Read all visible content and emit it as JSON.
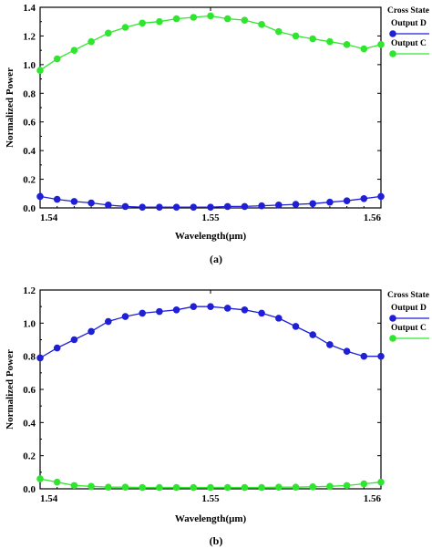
{
  "chart_data": [
    {
      "type": "line",
      "caption": "(a)",
      "xlabel": "Wavelength(μm)",
      "ylabel": "Normalized Power",
      "xlim": [
        1.54,
        1.56
      ],
      "ylim": [
        0,
        1.4
      ],
      "xticks": [
        "1.54",
        "1.55",
        "1.56"
      ],
      "yticks": [
        "0.0",
        "0.2",
        "0.4",
        "0.6",
        "0.8",
        "1.0",
        "1.2",
        "1.4"
      ],
      "grid": false,
      "legend": {
        "title": "Cross State",
        "placement": "right"
      },
      "x": [
        1.54,
        1.541,
        1.542,
        1.543,
        1.544,
        1.545,
        1.546,
        1.547,
        1.548,
        1.549,
        1.55,
        1.551,
        1.552,
        1.553,
        1.554,
        1.555,
        1.556,
        1.557,
        1.558,
        1.559,
        1.56
      ],
      "series": [
        {
          "name": "Output D",
          "color": "#1f1fd6",
          "values": [
            0.08,
            0.06,
            0.045,
            0.035,
            0.02,
            0.01,
            0.005,
            0.005,
            0.005,
            0.005,
            0.005,
            0.01,
            0.01,
            0.015,
            0.02,
            0.025,
            0.03,
            0.04,
            0.05,
            0.065,
            0.08
          ]
        },
        {
          "name": "Output C",
          "color": "#2ee62e",
          "values": [
            0.96,
            1.04,
            1.1,
            1.16,
            1.22,
            1.26,
            1.29,
            1.3,
            1.32,
            1.33,
            1.34,
            1.32,
            1.31,
            1.28,
            1.23,
            1.2,
            1.18,
            1.16,
            1.14,
            1.11,
            1.14
          ]
        }
      ]
    },
    {
      "type": "line",
      "caption": "(b)",
      "xlabel": "Wavelength(μm)",
      "ylabel": "Normalized Power",
      "xlim": [
        1.54,
        1.56
      ],
      "ylim": [
        0,
        1.2
      ],
      "xticks": [
        "1.54",
        "1.55",
        "1.56"
      ],
      "yticks": [
        "0.0",
        "0.2",
        "0.4",
        "0.6",
        "0.8",
        "1.0",
        "1.2"
      ],
      "grid": false,
      "legend": {
        "title": "Cross State",
        "placement": "right"
      },
      "x": [
        1.54,
        1.541,
        1.542,
        1.543,
        1.544,
        1.545,
        1.546,
        1.547,
        1.548,
        1.549,
        1.55,
        1.551,
        1.552,
        1.553,
        1.554,
        1.555,
        1.556,
        1.557,
        1.558,
        1.559,
        1.56
      ],
      "series": [
        {
          "name": "Output D",
          "color": "#1f1fd6",
          "values": [
            0.79,
            0.85,
            0.9,
            0.95,
            1.01,
            1.04,
            1.06,
            1.07,
            1.08,
            1.1,
            1.1,
            1.09,
            1.08,
            1.06,
            1.03,
            0.98,
            0.93,
            0.87,
            0.83,
            0.8,
            0.8
          ]
        },
        {
          "name": "Output C",
          "color": "#2ee62e",
          "values": [
            0.06,
            0.04,
            0.02,
            0.015,
            0.01,
            0.01,
            0.008,
            0.008,
            0.008,
            0.008,
            0.008,
            0.008,
            0.008,
            0.008,
            0.01,
            0.01,
            0.012,
            0.015,
            0.02,
            0.03,
            0.04
          ]
        }
      ]
    }
  ]
}
